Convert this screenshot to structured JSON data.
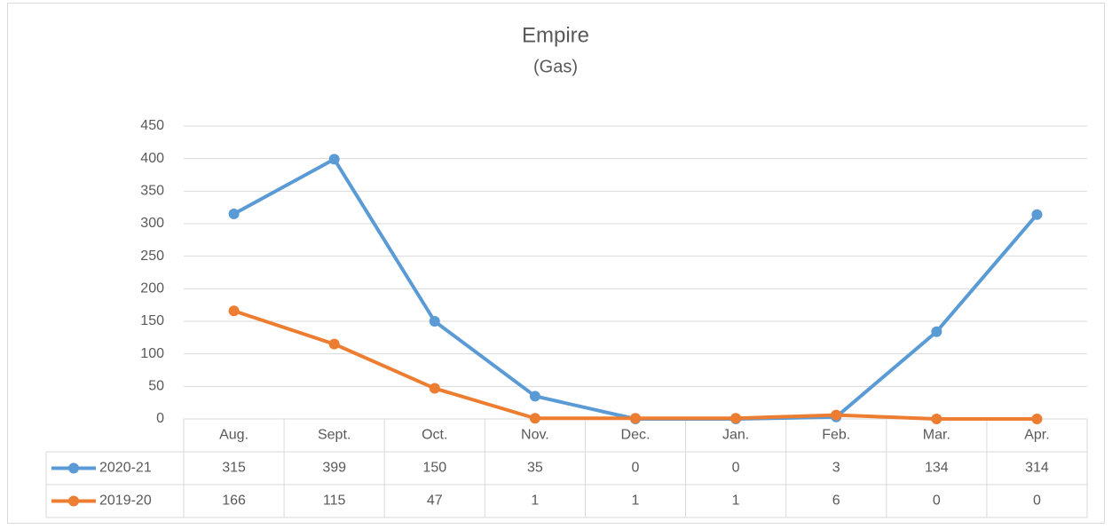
{
  "chart_data": {
    "type": "line",
    "title": "Empire",
    "subtitle": "(Gas)",
    "categories": [
      "Aug.",
      "Sept.",
      "Oct.",
      "Nov.",
      "Dec.",
      "Jan.",
      "Feb.",
      "Mar.",
      "Apr."
    ],
    "series": [
      {
        "name": "2020-21",
        "color": "#5b9bd5",
        "values": [
          315,
          399,
          150,
          35,
          0,
          0,
          3,
          134,
          314
        ]
      },
      {
        "name": "2019-20",
        "color": "#ed7d31",
        "values": [
          166,
          115,
          47,
          1,
          1,
          1,
          6,
          0,
          0
        ]
      }
    ],
    "ylim": [
      0,
      450
    ],
    "yticks": [
      0,
      50,
      100,
      150,
      200,
      250,
      300,
      350,
      400,
      450
    ],
    "grid": true,
    "data_table": true
  }
}
